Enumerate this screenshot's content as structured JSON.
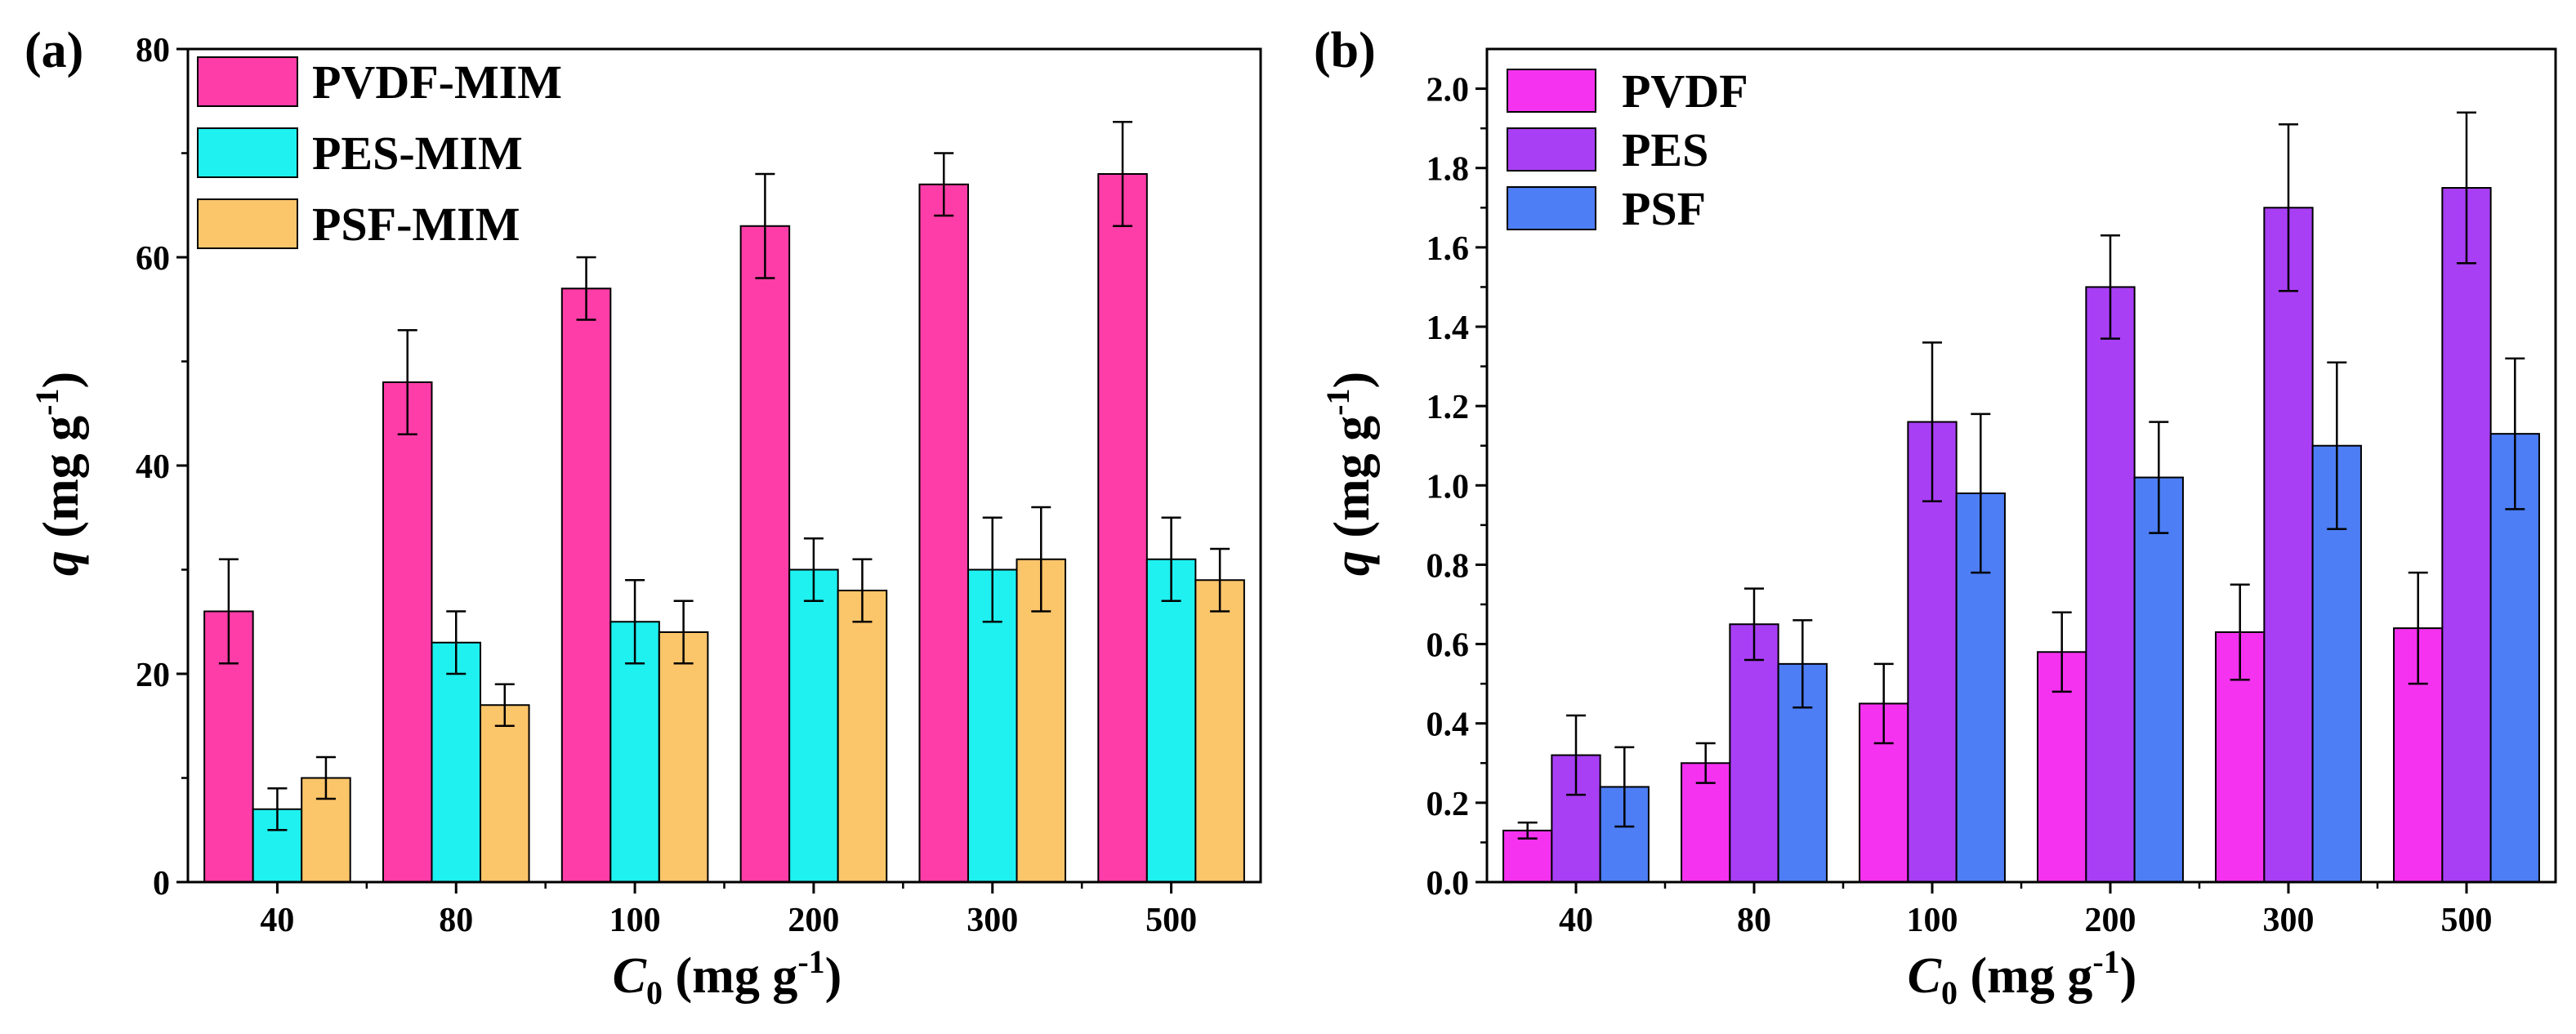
{
  "chart_data": [
    {
      "panel_label": "(a)",
      "type": "bar",
      "categories": [
        "40",
        "80",
        "100",
        "200",
        "300",
        "500"
      ],
      "series": [
        {
          "name": "PVDF-MIM",
          "color": "#ff3da8",
          "values": [
            26,
            48,
            57,
            63,
            67,
            68
          ],
          "errors": [
            5,
            5,
            3,
            5,
            3,
            5
          ]
        },
        {
          "name": "PES-MIM",
          "color": "#1ff0f0",
          "values": [
            7,
            23,
            25,
            30,
            30,
            31
          ],
          "errors": [
            2,
            3,
            4,
            3,
            5,
            4
          ]
        },
        {
          "name": "PSF-MIM",
          "color": "#fbc56a",
          "values": [
            10,
            17,
            24,
            28,
            31,
            29
          ],
          "errors": [
            2,
            2,
            3,
            3,
            5,
            3
          ]
        }
      ],
      "xlabel": {
        "main": "C",
        "sub": "0",
        "unit": " (mg g",
        "sup": "-1",
        "close": ")"
      },
      "ylabel": {
        "main": "q",
        "unit": "  (mg g",
        "sup": "-1",
        "close": ")"
      },
      "ylim": [
        0,
        80
      ],
      "yticks": [
        "0",
        "20",
        "40",
        "60",
        "80"
      ],
      "legend_position": "top-left"
    },
    {
      "panel_label": "(b)",
      "type": "bar",
      "categories": [
        "40",
        "80",
        "100",
        "200",
        "300",
        "500"
      ],
      "series": [
        {
          "name": "PVDF",
          "color": "#f532f0",
          "values": [
            0.13,
            0.3,
            0.45,
            0.58,
            0.63,
            0.64
          ],
          "errors": [
            0.02,
            0.05,
            0.1,
            0.1,
            0.12,
            0.14
          ]
        },
        {
          "name": "PES",
          "color": "#a83ff5",
          "values": [
            0.32,
            0.65,
            1.16,
            1.5,
            1.7,
            1.75
          ],
          "errors": [
            0.1,
            0.09,
            0.2,
            0.13,
            0.21,
            0.19
          ]
        },
        {
          "name": "PSF",
          "color": "#4d7ef5",
          "values": [
            0.24,
            0.55,
            0.98,
            1.02,
            1.1,
            1.13
          ],
          "errors": [
            0.1,
            0.11,
            0.2,
            0.14,
            0.21,
            0.19
          ]
        }
      ],
      "xlabel": {
        "main": "C",
        "sub": "0",
        "unit": " (mg g",
        "sup": "-1",
        "close": ")"
      },
      "ylabel": {
        "main": "q",
        "unit": "  (mg g",
        "sup": "-1",
        "close": ")"
      },
      "ylim": [
        0,
        2.1
      ],
      "yticks": [
        "0.0",
        "0.2",
        "0.4",
        "0.6",
        "0.8",
        "1.0",
        "1.2",
        "1.4",
        "1.6",
        "1.8",
        "2.0"
      ],
      "legend_position": "top-left"
    }
  ]
}
